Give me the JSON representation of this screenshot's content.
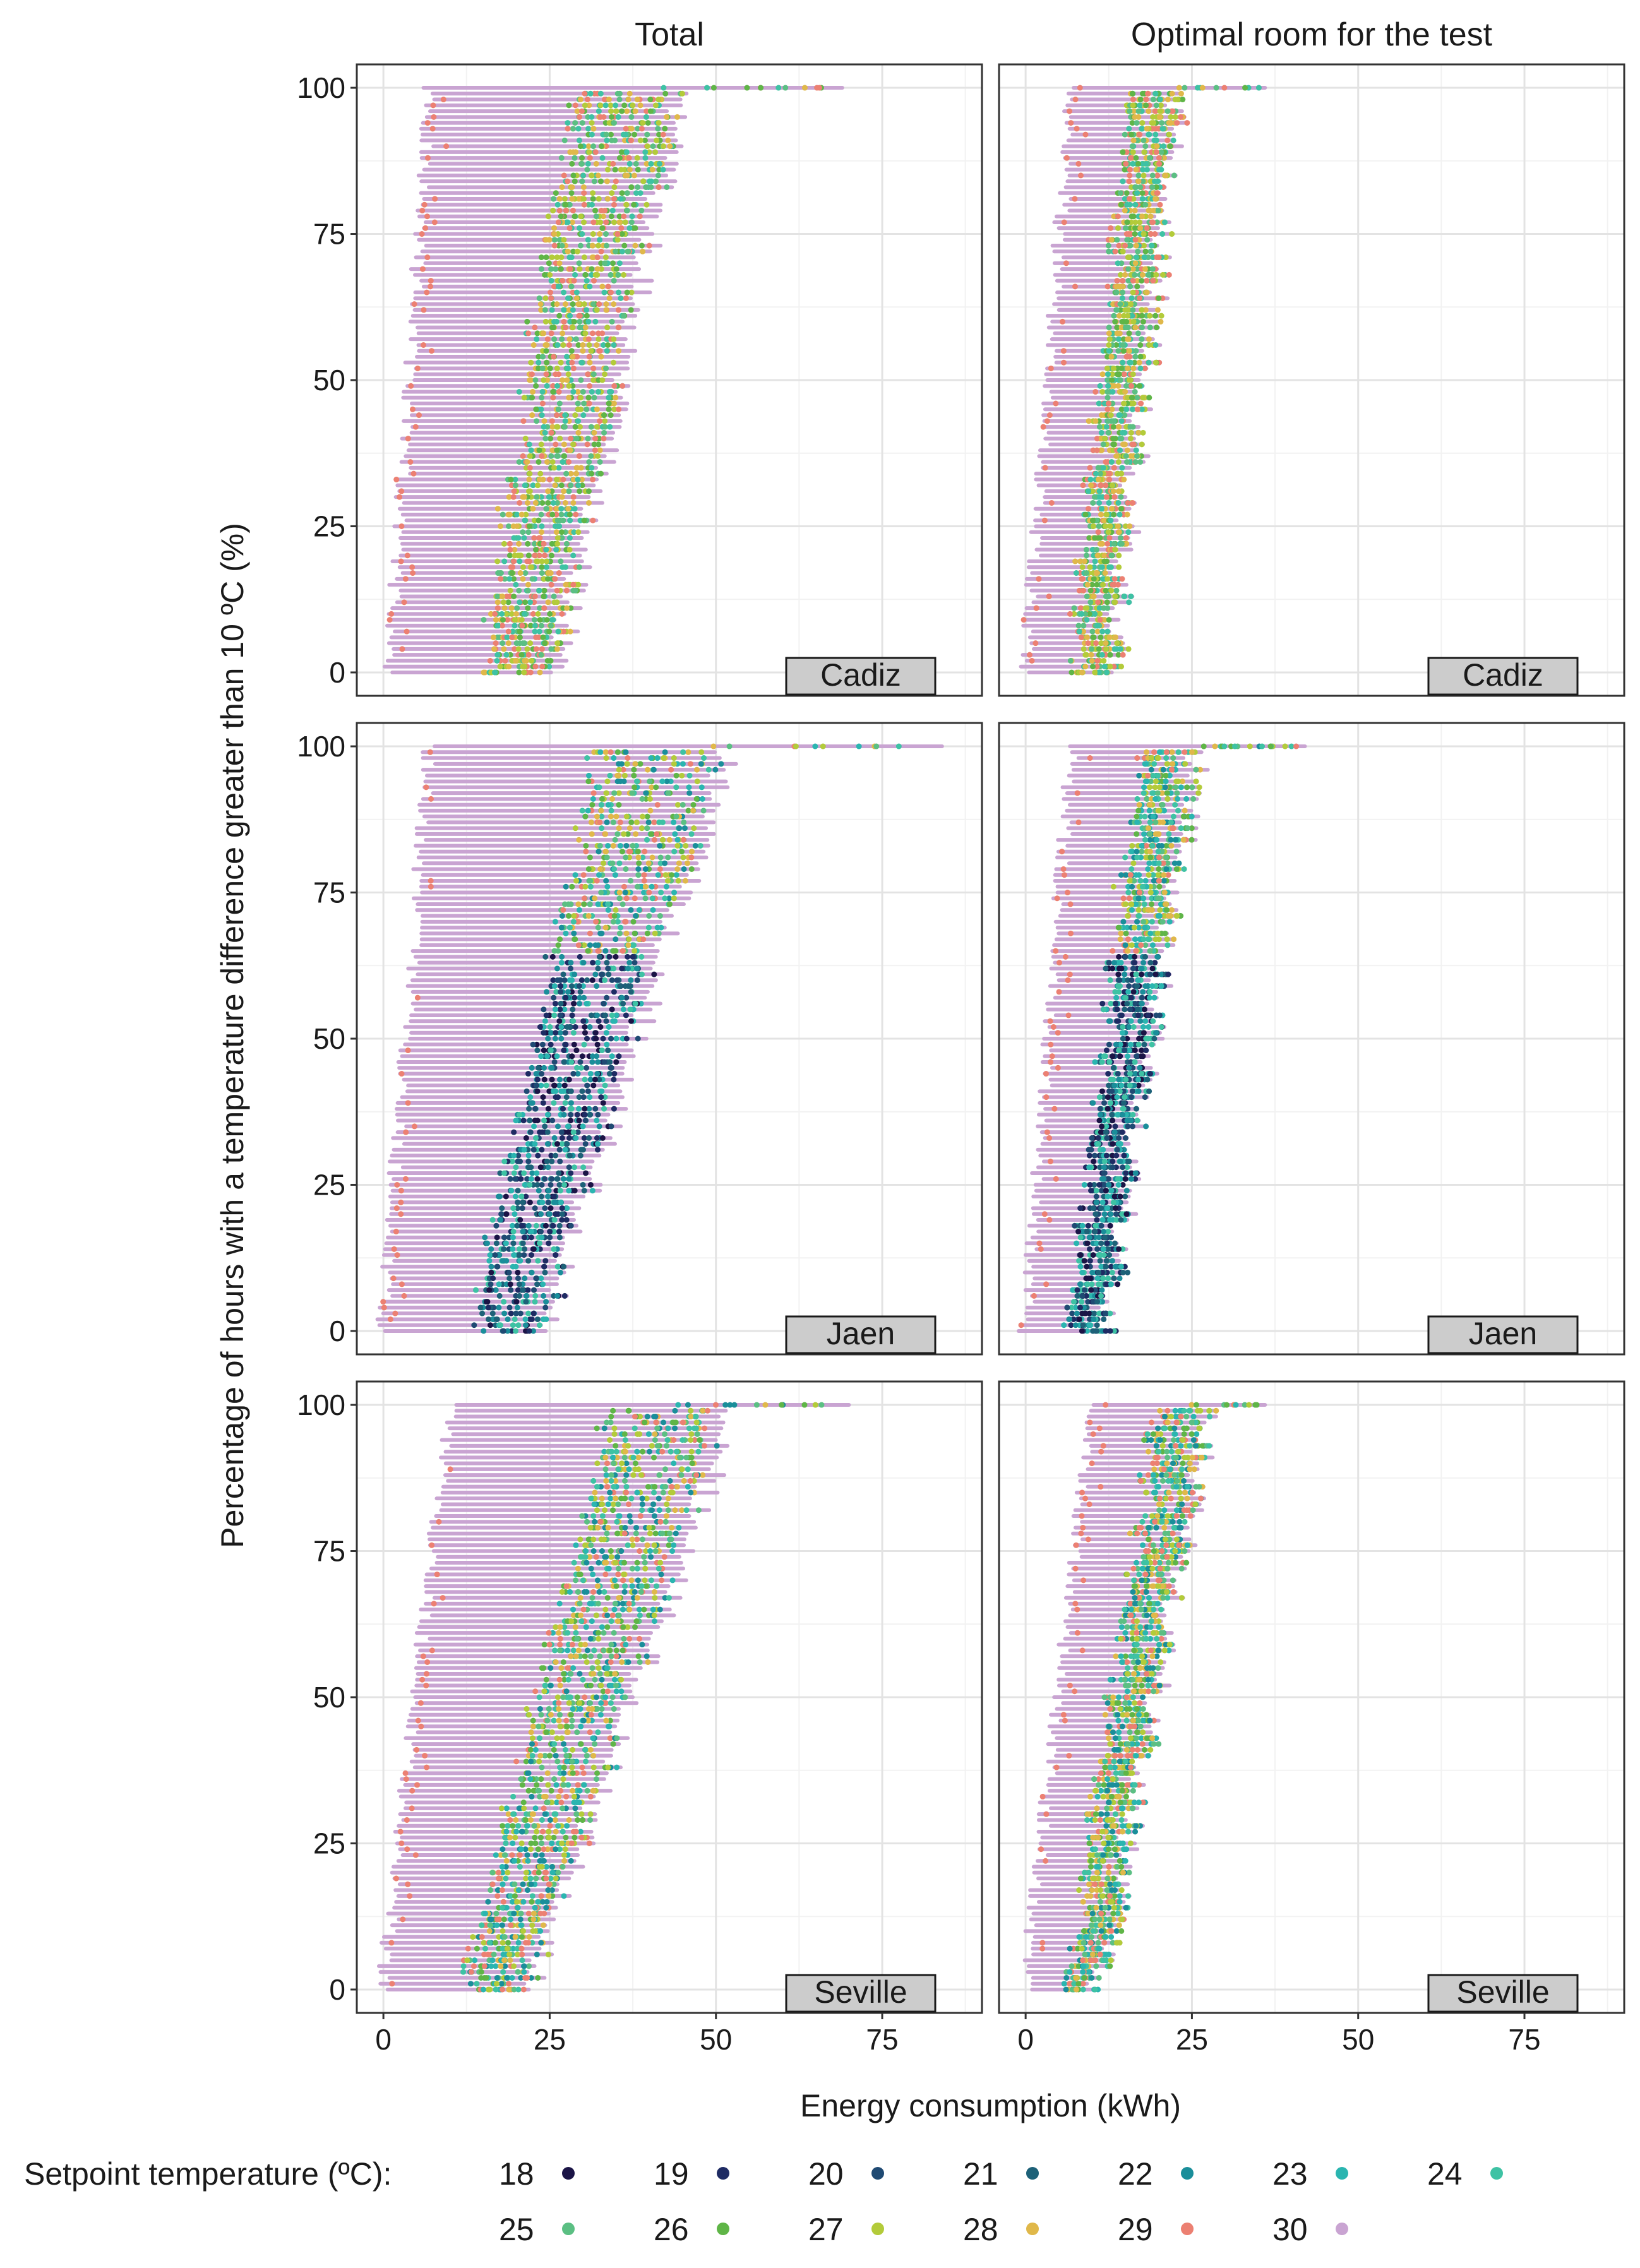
{
  "chart_data": {
    "type": "scatter",
    "title": "",
    "xlabel": "Energy consumption (kWh)",
    "ylabel": "Percentage of hours with a temperature difference greater than 10 ºC (%)",
    "xlim": [
      -4,
      90
    ],
    "ylim": [
      -4,
      104
    ],
    "x_ticks": [
      0,
      25,
      50,
      75
    ],
    "x_tick_labels": [
      "0",
      "25",
      "50",
      "75"
    ],
    "y_ticks": [
      0,
      25,
      50,
      75,
      100
    ],
    "y_tick_labels": [
      "0",
      "25",
      "50",
      "75",
      "100"
    ],
    "grid": true,
    "columns": [
      "Total",
      "Optimal room for the test"
    ],
    "rows": [
      "Cadiz",
      "Jaen",
      "Seville"
    ],
    "legend": {
      "title": "Setpoint temperature (ºC):",
      "position": "bottom",
      "entries": [
        {
          "label": "18",
          "color": "#1b1446"
        },
        {
          "label": "19",
          "color": "#1e2b63"
        },
        {
          "label": "20",
          "color": "#1f4a73"
        },
        {
          "label": "21",
          "color": "#1d6178"
        },
        {
          "label": "22",
          "color": "#1a8e9a"
        },
        {
          "label": "23",
          "color": "#2ab5b0"
        },
        {
          "label": "24",
          "color": "#3ec2a4"
        },
        {
          "label": "25",
          "color": "#5bbf83"
        },
        {
          "label": "26",
          "color": "#5fb547"
        },
        {
          "label": "27",
          "color": "#b3cb3a"
        },
        {
          "label": "28",
          "color": "#e0b84a"
        },
        {
          "label": "29",
          "color": "#ec8072"
        },
        {
          "label": "30",
          "color": "#c9a4d2"
        }
      ]
    },
    "panels": [
      {
        "column": "Total",
        "city": "Cadiz",
        "band_left_at_0": 1,
        "band_left_at_100": 7,
        "right_at_0": 26,
        "right_at_100": 45,
        "top_outlier_max": 69
      },
      {
        "column": "Optimal room for the test",
        "city": "Cadiz",
        "band_left_at_0": 0,
        "band_left_at_100": 7,
        "right_at_0": 13,
        "right_at_100": 23,
        "top_outlier_max": 36
      },
      {
        "column": "Total",
        "city": "Jaen",
        "band_left_at_0": 0,
        "band_left_at_100": 7,
        "right_at_0": 24,
        "right_at_100": 52,
        "top_outlier_max": 84
      },
      {
        "column": "Optimal room for the test",
        "city": "Jaen",
        "band_left_at_0": 0,
        "band_left_at_100": 7,
        "right_at_0": 12,
        "right_at_100": 26,
        "top_outlier_max": 42
      },
      {
        "column": "Total",
        "city": "Seville",
        "band_left_at_0": 0,
        "band_left_at_100": 10,
        "right_at_0": 22,
        "right_at_100": 53,
        "top_outlier_max": 70
      },
      {
        "column": "Optimal room for the test",
        "city": "Seville",
        "band_left_at_0": 0,
        "band_left_at_100": 10,
        "right_at_0": 11,
        "right_at_100": 28,
        "top_outlier_max": 36
      }
    ]
  }
}
